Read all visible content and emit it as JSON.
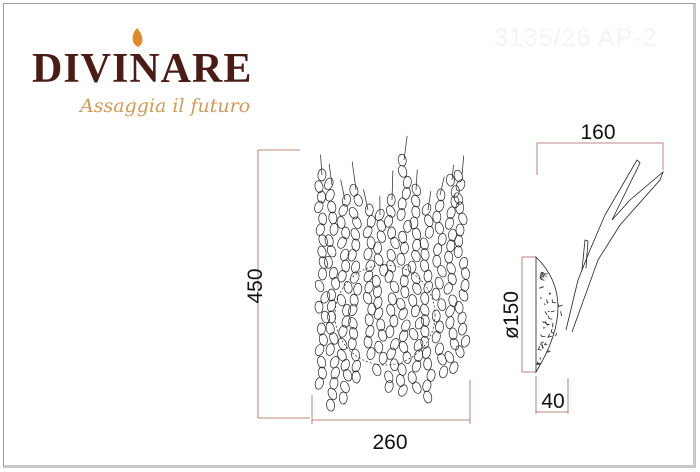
{
  "model_code": "3135/26 AP-2",
  "logo": {
    "brand": "DIVINARE",
    "tagline": "Assaggia il futuro"
  },
  "front_view": {
    "height_label": "450",
    "width_label": "260"
  },
  "side_view": {
    "depth_label": "160",
    "diameter_label": "ø150",
    "base_depth_label": "40"
  },
  "colors": {
    "dimension_line": "#a8625a",
    "drawing": "#222222",
    "brand": "#4a1c14",
    "tagline": "#d49a55"
  }
}
